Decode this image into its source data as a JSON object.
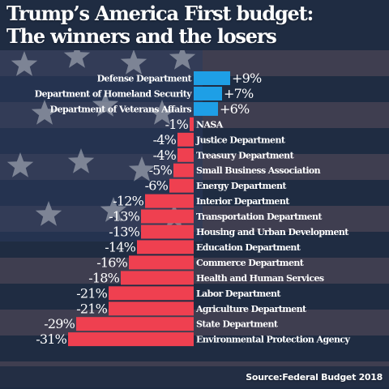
{
  "header": {
    "title_line1": "Trump’s America First budget:",
    "title_line2": "The winners and the losers"
  },
  "source": "Source:Federal Budget 2018",
  "colors": {
    "increase": "#1e9fe6",
    "decrease": "#ef4050",
    "background": "#1f2c42",
    "flag_stripe": "#5a4e5c",
    "star": "#d8dbe3",
    "text": "#ffffff"
  },
  "chart_data": {
    "type": "bar",
    "orientation": "horizontal",
    "title": "Trump’s America First budget: The winners and the losers",
    "xlabel": "",
    "ylabel": "",
    "unit": "%",
    "xlim": [
      -31,
      9
    ],
    "categories": [
      "Defense Department",
      "Department of Homeland Security",
      "Department of Veterans Affairs",
      "NASA",
      "Justice Department",
      "Treasury Department",
      "Small Business Association",
      "Energy Department",
      "Interior Department",
      "Transportation Department",
      "Housing and Urban Development",
      "Education Department",
      "Commerce Department",
      "Health and Human Services",
      "Labor Department",
      "Agriculture Department",
      "State Department",
      "Environmental Protection Agency"
    ],
    "values": [
      9,
      7,
      6,
      -1,
      -4,
      -4,
      -5,
      -6,
      -12,
      -13,
      -13,
      -14,
      -16,
      -18,
      -21,
      -21,
      -29,
      -31
    ],
    "data_labels": [
      "+9%",
      "+7%",
      "+6%",
      "-1%",
      "-4%",
      "-4%",
      "-5%",
      "-6%",
      "-12%",
      "-13%",
      "-13%",
      "-14%",
      "-16%",
      "-18%",
      "-21%",
      "-21%",
      "-29%",
      "-31%"
    ],
    "legend": "none",
    "grid": false
  }
}
